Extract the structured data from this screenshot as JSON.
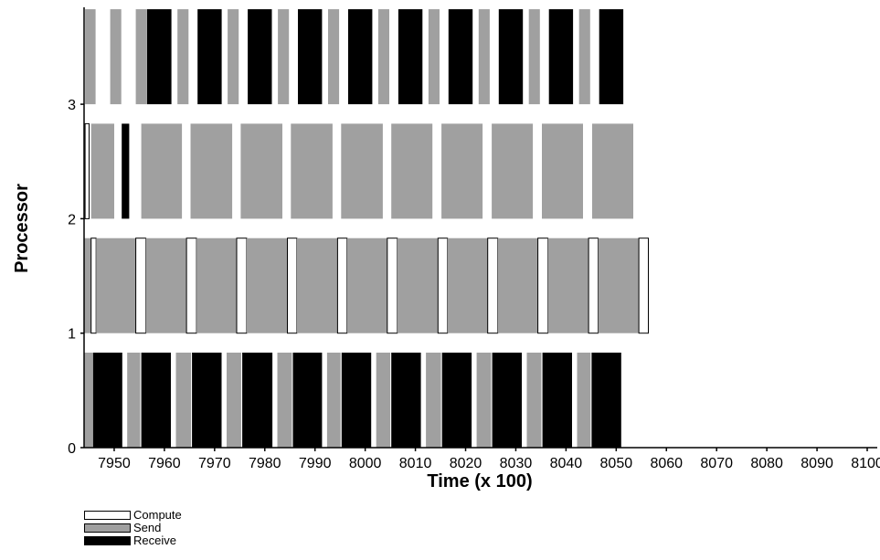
{
  "chart_data": {
    "type": "gantt",
    "xlabel": "Time (x 100)",
    "ylabel": "Processor",
    "xlim": [
      7944,
      8102
    ],
    "x_ticks": [
      7950,
      7960,
      7970,
      7980,
      7990,
      8000,
      8010,
      8020,
      8030,
      8040,
      8050,
      8060,
      8070,
      8080,
      8090,
      8100
    ],
    "y_ticks": [
      0,
      1,
      2,
      3
    ],
    "colors": {
      "compute": "#ffffff",
      "send": "#a0a0a0",
      "receive": "#000000"
    },
    "legend": [
      {
        "state": "compute",
        "label": "Compute"
      },
      {
        "state": "send",
        "label": "Send"
      },
      {
        "state": "receive",
        "label": "Receive"
      }
    ],
    "processors": [
      {
        "id": 0,
        "intervals": [
          [
            "send",
            7944.0,
            7945.8
          ],
          [
            "receive",
            7945.8,
            7951.6
          ],
          [
            "send",
            7952.6,
            7955.2
          ],
          [
            "receive",
            7955.4,
            7961.3
          ],
          [
            "send",
            7962.3,
            7965.3
          ],
          [
            "receive",
            7965.5,
            7971.4
          ],
          [
            "send",
            7972.4,
            7975.3
          ],
          [
            "receive",
            7975.5,
            7981.5
          ],
          [
            "send",
            7982.5,
            7985.4
          ],
          [
            "receive",
            7985.6,
            7991.4
          ],
          [
            "send",
            7992.4,
            7995.1
          ],
          [
            "receive",
            7995.3,
            8001.2
          ],
          [
            "send",
            8002.2,
            8005.0
          ],
          [
            "receive",
            8005.2,
            8011.1
          ],
          [
            "send",
            8012.1,
            8015.1
          ],
          [
            "receive",
            8015.3,
            8021.2
          ],
          [
            "send",
            8022.2,
            8025.1
          ],
          [
            "receive",
            8025.3,
            8031.2
          ],
          [
            "send",
            8032.2,
            8035.1
          ],
          [
            "receive",
            8035.3,
            8041.2
          ],
          [
            "send",
            8042.2,
            8044.9
          ],
          [
            "receive",
            8045.1,
            8051.0
          ]
        ]
      },
      {
        "id": 1,
        "intervals": [
          [
            "send",
            7944.0,
            7945.4
          ],
          [
            "compute",
            7945.4,
            7946.4
          ],
          [
            "send",
            7946.4,
            7954.3
          ],
          [
            "compute",
            7954.3,
            7956.3
          ],
          [
            "send",
            7956.3,
            7964.4
          ],
          [
            "compute",
            7964.4,
            7966.4
          ],
          [
            "send",
            7966.4,
            7974.4
          ],
          [
            "compute",
            7974.4,
            7976.4
          ],
          [
            "send",
            7976.4,
            7984.5
          ],
          [
            "compute",
            7984.5,
            7986.4
          ],
          [
            "send",
            7986.4,
            7994.5
          ],
          [
            "compute",
            7994.5,
            7996.4
          ],
          [
            "send",
            7996.4,
            8004.4
          ],
          [
            "compute",
            8004.4,
            8006.4
          ],
          [
            "send",
            8006.4,
            8014.5
          ],
          [
            "compute",
            8014.5,
            8016.4
          ],
          [
            "send",
            8016.4,
            8024.4
          ],
          [
            "compute",
            8024.4,
            8026.4
          ],
          [
            "send",
            8026.4,
            8034.4
          ],
          [
            "compute",
            8034.4,
            8036.4
          ],
          [
            "send",
            8036.4,
            8044.5
          ],
          [
            "compute",
            8044.5,
            8046.4
          ],
          [
            "send",
            8046.4,
            8054.5
          ],
          [
            "compute",
            8054.5,
            8056.4
          ]
        ]
      },
      {
        "id": 2,
        "intervals": [
          [
            "compute",
            7944.2,
            7945.0
          ],
          [
            "send",
            7945.4,
            7950.0
          ],
          [
            "receive",
            7951.5,
            7953.0
          ],
          [
            "send",
            7955.4,
            7963.5
          ],
          [
            "send",
            7965.2,
            7973.5
          ],
          [
            "send",
            7975.2,
            7983.5
          ],
          [
            "send",
            7985.2,
            7993.5
          ],
          [
            "send",
            7995.2,
            8003.5
          ],
          [
            "send",
            8005.2,
            8013.4
          ],
          [
            "send",
            8015.2,
            8023.4
          ],
          [
            "send",
            8025.2,
            8033.4
          ],
          [
            "send",
            8035.2,
            8043.4
          ],
          [
            "send",
            8045.2,
            8053.4
          ]
        ]
      },
      {
        "id": 3,
        "intervals": [
          [
            "send",
            7944.2,
            7946.3
          ],
          [
            "send",
            7949.2,
            7951.4
          ],
          [
            "send",
            7954.3,
            7956.4
          ],
          [
            "receive",
            7956.5,
            7961.4
          ],
          [
            "send",
            7962.6,
            7964.8
          ],
          [
            "receive",
            7966.6,
            7971.4
          ],
          [
            "send",
            7972.6,
            7974.8
          ],
          [
            "receive",
            7976.6,
            7981.4
          ],
          [
            "send",
            7982.6,
            7984.8
          ],
          [
            "receive",
            7986.6,
            7991.4
          ],
          [
            "send",
            7992.6,
            7994.8
          ],
          [
            "receive",
            7996.6,
            8001.4
          ],
          [
            "send",
            8002.6,
            8004.8
          ],
          [
            "receive",
            8006.6,
            8011.4
          ],
          [
            "send",
            8012.6,
            8014.8
          ],
          [
            "receive",
            8016.6,
            8021.4
          ],
          [
            "send",
            8022.6,
            8024.8
          ],
          [
            "receive",
            8026.6,
            8031.4
          ],
          [
            "send",
            8032.6,
            8034.8
          ],
          [
            "receive",
            8036.6,
            8041.4
          ],
          [
            "send",
            8042.6,
            8044.8
          ],
          [
            "receive",
            8046.6,
            8051.4
          ]
        ]
      }
    ]
  }
}
